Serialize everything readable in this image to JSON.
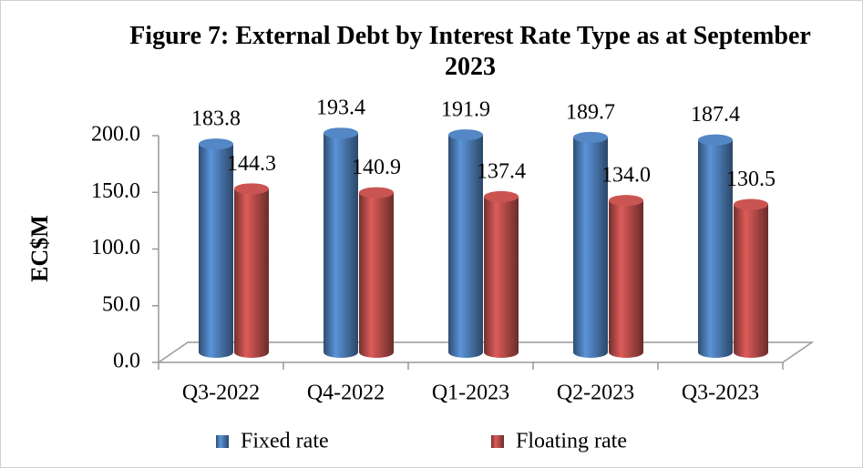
{
  "chart_data": {
    "type": "bar3d",
    "title": "Figure 7: External Debt by Interest Rate Type as at September 2023",
    "y_label": "EC$M",
    "categories": [
      "Q3-2022",
      "Q4-2022",
      "Q1-2023",
      "Q2-2023",
      "Q3-2023"
    ],
    "series": [
      {
        "name": "Fixed rate",
        "color": "#4f81bd",
        "values": [
          183.8,
          193.4,
          191.9,
          189.7,
          187.4
        ]
      },
      {
        "name": "Floating rate",
        "color": "#c0504d",
        "values": [
          144.3,
          140.9,
          137.4,
          134,
          130.5
        ],
        "value_labels": [
          "144.3",
          "140.9",
          "137.4",
          "134.0",
          "130.5"
        ]
      }
    ],
    "ylim": [
      0,
      200
    ],
    "yticks": [
      {
        "value": 0,
        "label": "0.0"
      },
      {
        "value": 50,
        "label": "50.0"
      },
      {
        "value": 100,
        "label": "100.0"
      },
      {
        "value": 150,
        "label": "150.0"
      },
      {
        "value": 200,
        "label": "200.0"
      }
    ],
    "legend": "bottom"
  }
}
